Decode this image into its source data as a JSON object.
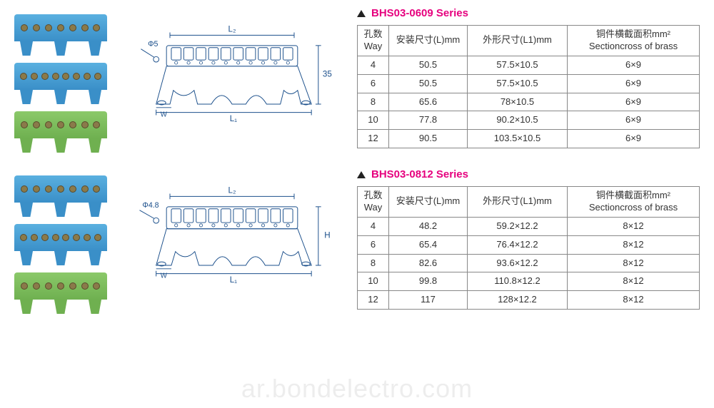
{
  "watermark": "ar.bondelectro.com",
  "diagram1": {
    "phi": "Φ5",
    "L2": "L₂",
    "L1": "L₁",
    "W": "W",
    "H": "35"
  },
  "diagram2": {
    "phi": "Φ4.8",
    "L2": "L₂",
    "L1": "L₁",
    "W": "W",
    "H": "H"
  },
  "series1": {
    "title": "BHS03-0609 Series",
    "title_color": "#e6007e",
    "columns": [
      {
        "zh": "孔数",
        "en": "Way"
      },
      {
        "zh": "安装尺寸(L)mm",
        "en": ""
      },
      {
        "zh": "外形尺寸(L1)mm",
        "en": ""
      },
      {
        "zh": "铜件横截面积mm²",
        "en": "Sectioncross of brass"
      }
    ],
    "rows": [
      [
        "4",
        "50.5",
        "57.5×10.5",
        "6×9"
      ],
      [
        "6",
        "50.5",
        "57.5×10.5",
        "6×9"
      ],
      [
        "8",
        "65.6",
        "78×10.5",
        "6×9"
      ],
      [
        "10",
        "77.8",
        "90.2×10.5",
        "6×9"
      ],
      [
        "12",
        "90.5",
        "103.5×10.5",
        "6×9"
      ]
    ]
  },
  "series2": {
    "title": "BHS03-0812 Series",
    "title_color": "#e6007e",
    "columns": [
      {
        "zh": "孔数",
        "en": "Way"
      },
      {
        "zh": "安装尺寸(L)mm",
        "en": ""
      },
      {
        "zh": "外形尺寸(L1)mm",
        "en": ""
      },
      {
        "zh": "铜件横截面积mm²",
        "en": "Sectioncross of brass"
      }
    ],
    "rows": [
      [
        "4",
        "48.2",
        "59.2×12.2",
        "8×12"
      ],
      [
        "6",
        "65.4",
        "76.4×12.2",
        "8×12"
      ],
      [
        "8",
        "82.6",
        "93.6×12.2",
        "8×12"
      ],
      [
        "10",
        "99.8",
        "110.8×12.2",
        "8×12"
      ],
      [
        "12",
        "117",
        "128×12.2",
        "8×12"
      ]
    ]
  }
}
